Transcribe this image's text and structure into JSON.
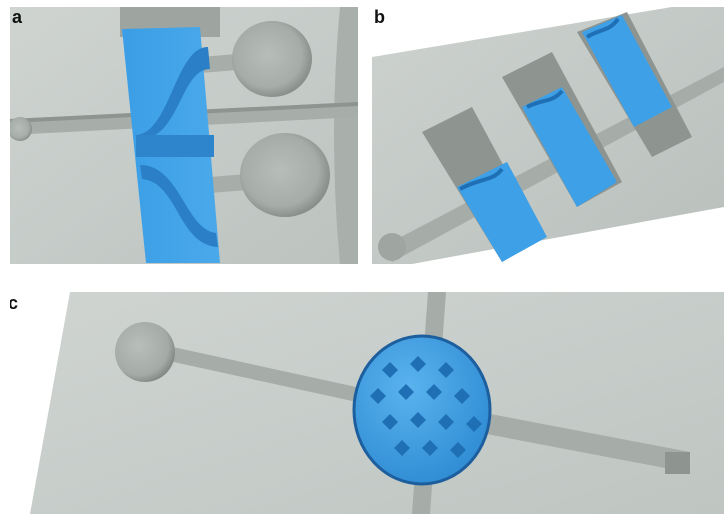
{
  "panels": {
    "a": {
      "label": "a"
    },
    "b": {
      "label": "b"
    },
    "c": {
      "label": "c"
    }
  },
  "colors": {
    "background": "#ffffff",
    "chip_surface": "#c7cdc9",
    "channel_floor": "#a9afab",
    "channel_shadow": "#8e9490",
    "structure_blue": "#3ea0e6",
    "structure_blue_dark": "#1f6fb5"
  }
}
